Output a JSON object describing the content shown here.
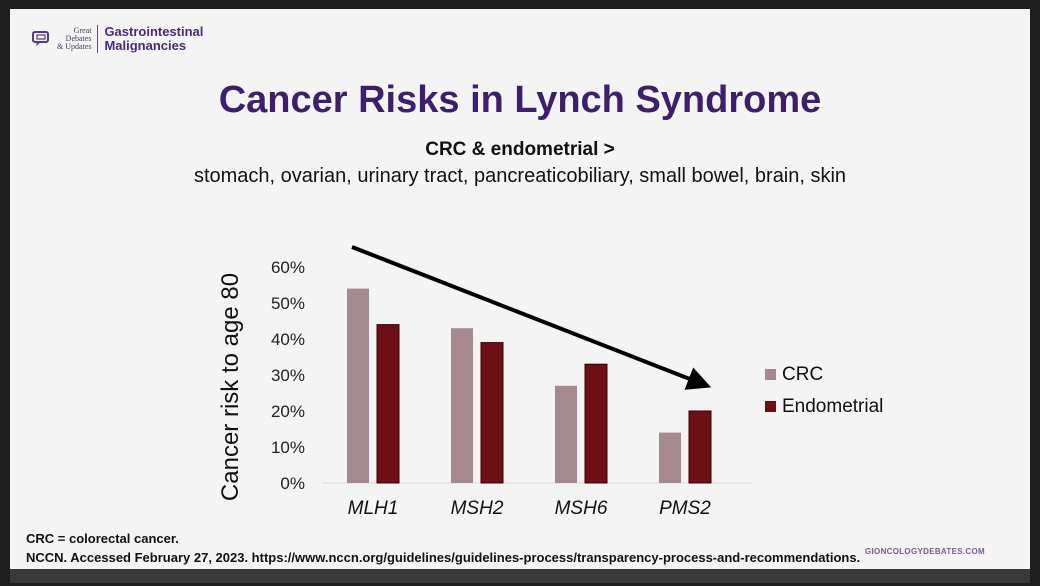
{
  "header": {
    "logo_lines": [
      "Great",
      "Debates",
      "& Updates"
    ],
    "program_lines": [
      "Gastrointestinal",
      "Malignancies"
    ]
  },
  "slide": {
    "title": "Cancer Risks in Lynch Syndrome",
    "subtitle_bold": "CRC & endometrial >",
    "subtitle": "stomach, ovarian, urinary tract, pancreaticobiliary, small bowel, brain, skin"
  },
  "footer": {
    "abbreviation": "CRC = colorectal cancer.",
    "reference": "NCCN. Accessed February 27, 2023. https://www.nccn.org/guidelines/guidelines-process/transparency-process-and-recommendations.",
    "site": "GIONCOLOGYDEBATES.COM"
  },
  "colors": {
    "title": "#3d1f6b",
    "crc": "#a48a8f",
    "endometrial": "#6e0f18"
  },
  "chart_data": {
    "type": "bar",
    "title": "",
    "xlabel": "",
    "ylabel": "Cancer risk to age 80",
    "categories": [
      "MLH1",
      "MSH2",
      "MSH6",
      "PMS2"
    ],
    "series": [
      {
        "name": "CRC",
        "values": [
          54,
          43,
          27,
          14
        ],
        "color": "#a48a8f"
      },
      {
        "name": "Endometrial",
        "values": [
          44,
          39,
          33,
          20
        ],
        "color": "#6e0f18"
      }
    ],
    "ylim": [
      0,
      60
    ],
    "yticks": [
      0,
      10,
      20,
      30,
      40,
      50,
      60
    ],
    "ytick_labels": [
      "0%",
      "10%",
      "20%",
      "30%",
      "40%",
      "50%",
      "60%"
    ],
    "grid": false,
    "legend": "right",
    "annotation": "Downward trend arrow from MLH1 to PMS2"
  }
}
